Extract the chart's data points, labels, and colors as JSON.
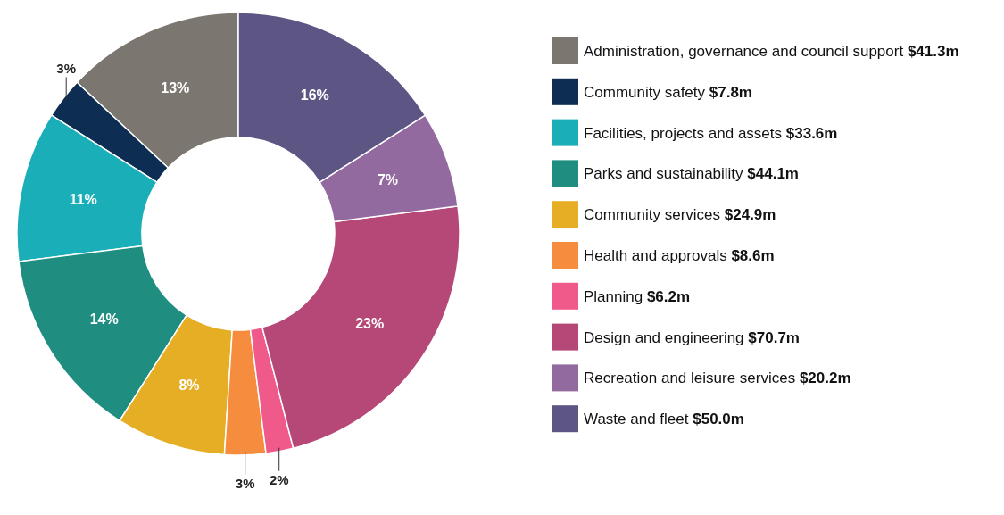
{
  "chart_data": {
    "type": "donut",
    "categories": [
      "Administration, governance and council support $41.3m",
      "Community safety $7.8m",
      "Facilities, projects and assets $33.6m",
      "Parks and sustainability $44.1m",
      "Community services $24.9m",
      "Health and approvals $8.6m",
      "Planning $6.2m",
      "Design and engineering $70.7m",
      "Recreation and leisure services $20.2m",
      "Waste and fleet $50.0m"
    ],
    "values": [
      13,
      3,
      11,
      14,
      8,
      3,
      2,
      23,
      7,
      16
    ],
    "value_labels": [
      "13%",
      "3%",
      "11%",
      "14%",
      "8%",
      "3%",
      "2%",
      "23%",
      "7%",
      "16%"
    ],
    "colors": [
      "#7b7670",
      "#0d2d52",
      "#1aaeb8",
      "#1f8e80",
      "#e6ae24",
      "#f68c3e",
      "#ef5a8a",
      "#b64878",
      "#936aa0",
      "#5d5583"
    ],
    "legend": "right"
  }
}
